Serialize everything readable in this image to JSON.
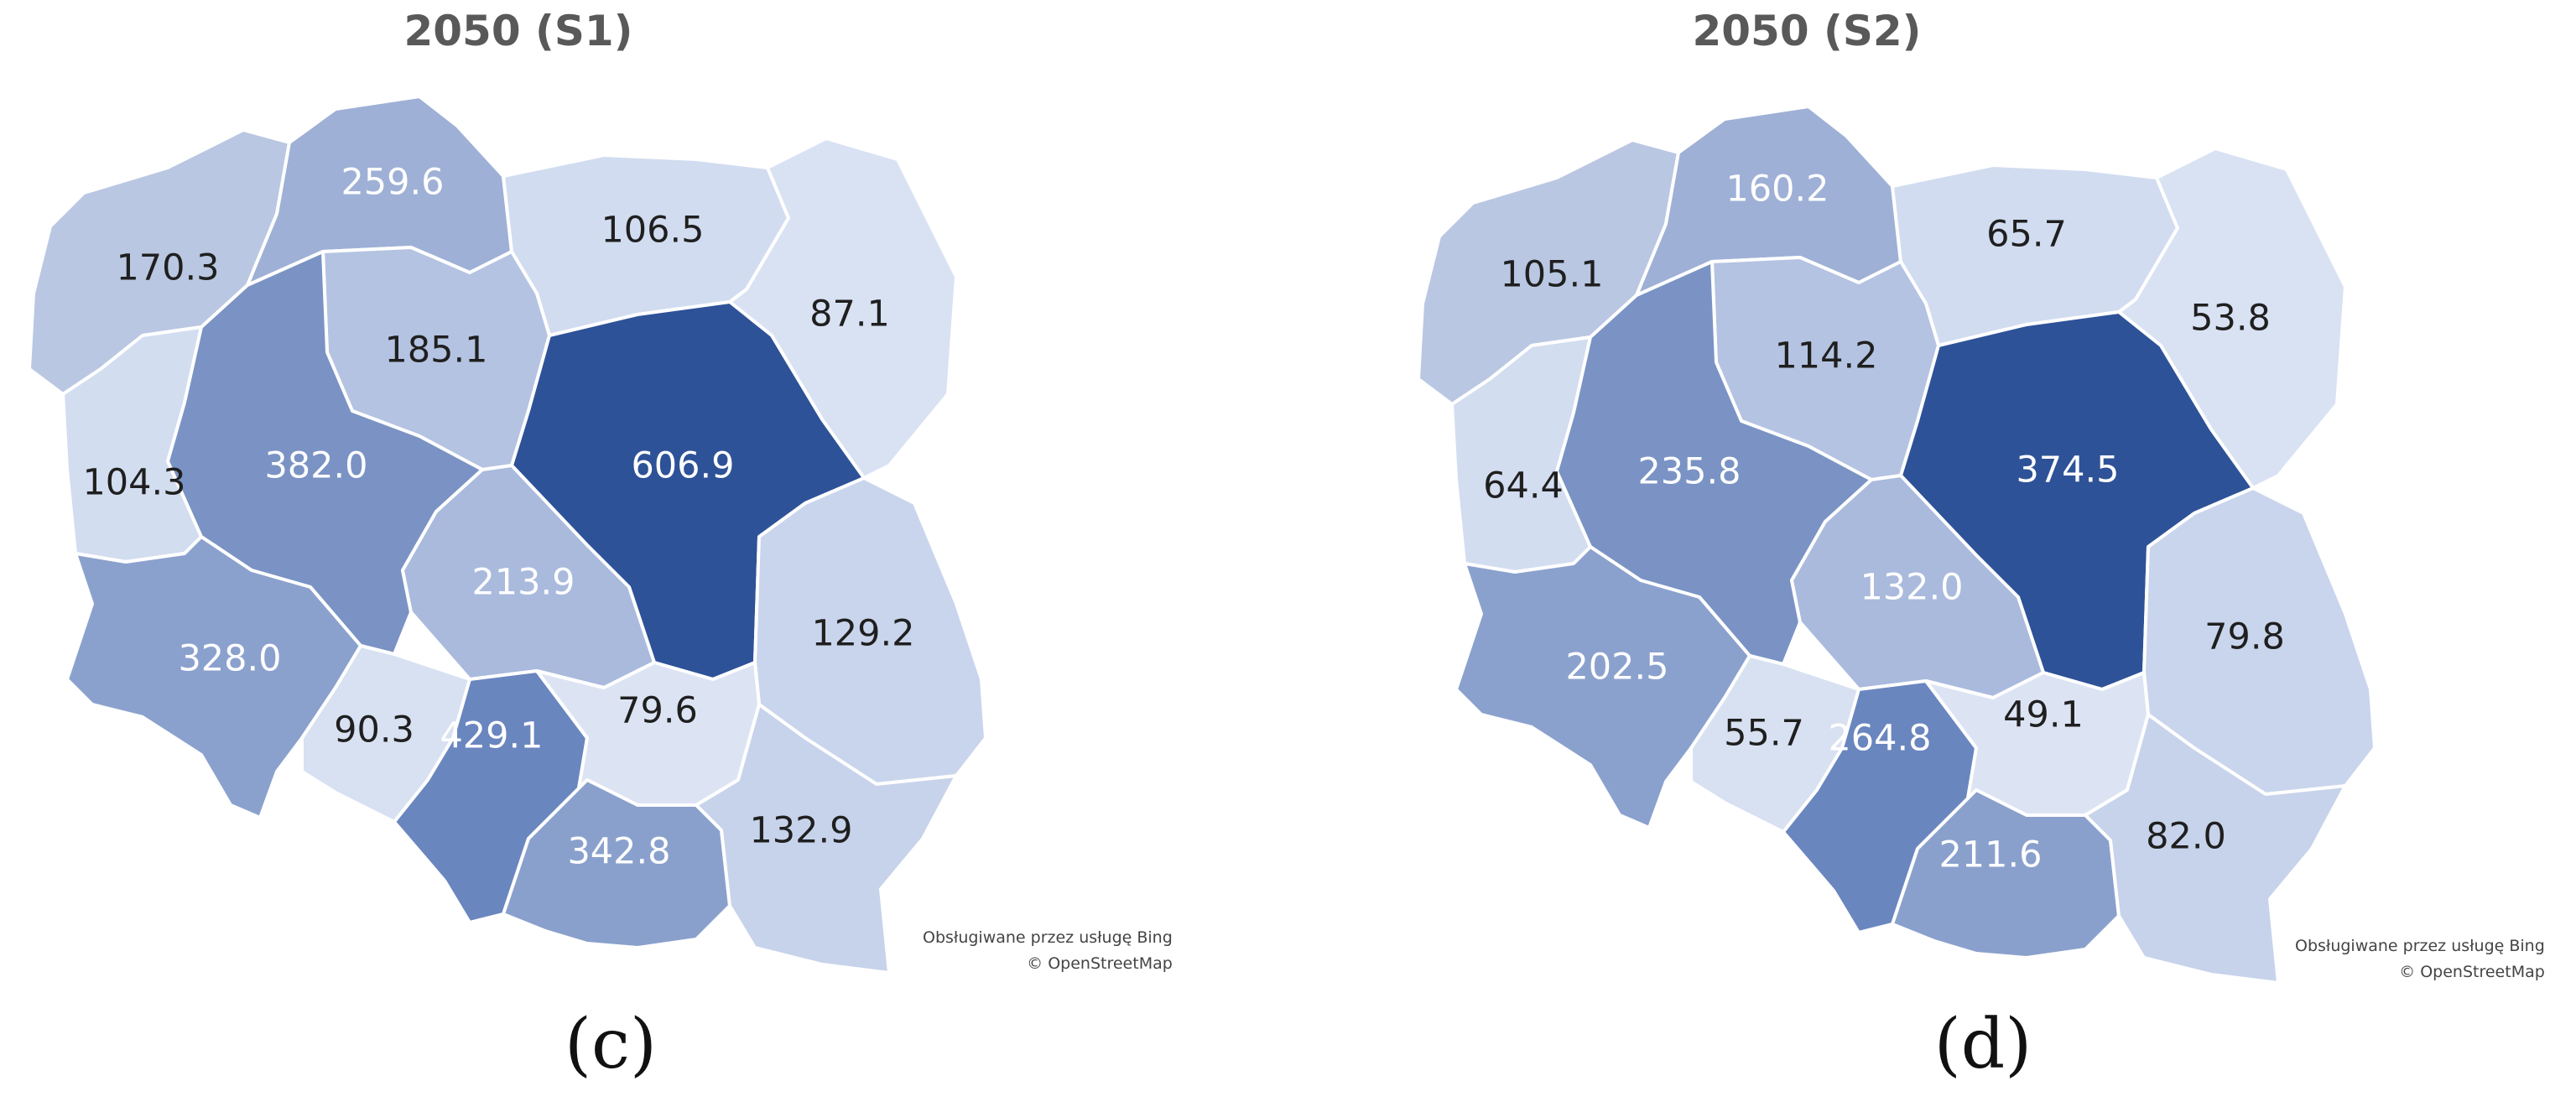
{
  "maps": [
    {
      "id": "c",
      "title": "2050 (S1)",
      "caption": "(c)",
      "credit_line1": "Obsługiwane przez usługę Bing",
      "credit_line2": "© OpenStreetMap",
      "regions": [
        {
          "name": "zachodniopomorskie",
          "value": "170.3",
          "color": "#b9c7e2"
        },
        {
          "name": "pomorskie",
          "value": "259.6",
          "color": "#9eb0d6"
        },
        {
          "name": "warminsko-mazurskie",
          "value": "106.5",
          "color": "#d2dcf0"
        },
        {
          "name": "podlaskie",
          "value": "87.1",
          "color": "#d9e2f3"
        },
        {
          "name": "kujawsko-pomorskie",
          "value": "185.1",
          "color": "#b4c3e1"
        },
        {
          "name": "lubuskie",
          "value": "104.3",
          "color": "#d3ddf0"
        },
        {
          "name": "wielkopolskie",
          "value": "382.0",
          "color": "#7a93c4"
        },
        {
          "name": "mazowieckie",
          "value": "606.9",
          "color": "#2e5298"
        },
        {
          "name": "lodzkie",
          "value": "213.9",
          "color": "#a9badd"
        },
        {
          "name": "lubelskie",
          "value": "129.2",
          "color": "#c9d5ec"
        },
        {
          "name": "dolnoslaskie",
          "value": "328.0",
          "color": "#8ba1cd"
        },
        {
          "name": "opolskie",
          "value": "90.3",
          "color": "#d8e1f2"
        },
        {
          "name": "slaskie",
          "value": "429.1",
          "color": "#6a86bf"
        },
        {
          "name": "swietokrzyskie",
          "value": "79.6",
          "color": "#dce4f4"
        },
        {
          "name": "malopolskie",
          "value": "342.8",
          "color": "#8aa0cc"
        },
        {
          "name": "podkarpackie",
          "value": "132.9",
          "color": "#c7d3eb"
        }
      ]
    },
    {
      "id": "d",
      "title": "2050 (S2)",
      "caption": "(d)",
      "credit_line1": "Obsługiwane przez usługę Bing",
      "credit_line2": "© OpenStreetMap",
      "regions": [
        {
          "name": "zachodniopomorskie",
          "value": "105.1",
          "color": "#b9c7e2"
        },
        {
          "name": "pomorskie",
          "value": "160.2",
          "color": "#9eb0d6"
        },
        {
          "name": "warminsko-mazurskie",
          "value": "65.7",
          "color": "#d2dcf0"
        },
        {
          "name": "podlaskie",
          "value": "53.8",
          "color": "#d9e2f3"
        },
        {
          "name": "kujawsko-pomorskie",
          "value": "114.2",
          "color": "#b4c3e1"
        },
        {
          "name": "lubuskie",
          "value": "64.4",
          "color": "#d3ddf0"
        },
        {
          "name": "wielkopolskie",
          "value": "235.8",
          "color": "#7a93c4"
        },
        {
          "name": "mazowieckie",
          "value": "374.5",
          "color": "#2e5298"
        },
        {
          "name": "lodzkie",
          "value": "132.0",
          "color": "#a9badd"
        },
        {
          "name": "lubelskie",
          "value": "79.8",
          "color": "#c9d5ec"
        },
        {
          "name": "dolnoslaskie",
          "value": "202.5",
          "color": "#8ba1cd"
        },
        {
          "name": "opolskie",
          "value": "55.7",
          "color": "#d8e1f2"
        },
        {
          "name": "slaskie",
          "value": "264.8",
          "color": "#6a86bf"
        },
        {
          "name": "swietokrzyskie",
          "value": "49.1",
          "color": "#dce4f4"
        },
        {
          "name": "malopolskie",
          "value": "211.6",
          "color": "#8aa0cc"
        },
        {
          "name": "podkarpackie",
          "value": "82.0",
          "color": "#c7d3eb"
        }
      ]
    }
  ]
}
